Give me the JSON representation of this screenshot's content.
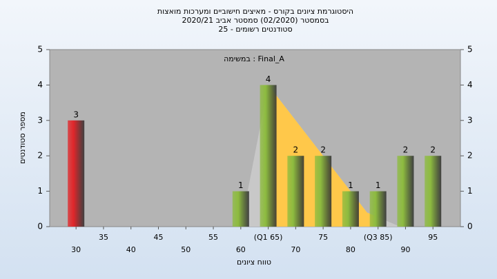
{
  "chart_data": {
    "type": "bar",
    "title": [
      "היסטוגרמת ציונים בקורס - מאיצים חישוביים ומערכות מואצות",
      "בסמסטר  (02/2020)  סמסטר אביב 2020/21",
      "סטודנטים רשומים - 25"
    ],
    "annotation": "במשימה : Final_A",
    "x_label": "טווח ציונים",
    "y_label": "מספר סטודנטים",
    "x": [
      30,
      35,
      40,
      45,
      50,
      55,
      60,
      65,
      70,
      75,
      80,
      85,
      90,
      95
    ],
    "values": [
      3,
      0,
      0,
      0,
      0,
      0,
      1,
      4,
      2,
      2,
      1,
      1,
      2,
      2
    ],
    "colors": [
      "#e0262a",
      "#8dbb3f",
      "#8dbb3f",
      "#8dbb3f",
      "#8dbb3f",
      "#8dbb3f",
      "#8dbb3f",
      "#8dbb3f",
      "#8dbb3f",
      "#8dbb3f",
      "#8dbb3f",
      "#8dbb3f",
      "#8dbb3f",
      "#8dbb3f"
    ],
    "xlim": [
      25.2,
      100
    ],
    "xticks": [
      30,
      35,
      40,
      45,
      50,
      55,
      60,
      {
        "value": 65,
        "label": "(Q1 65)"
      },
      70,
      75,
      80,
      {
        "value": 85,
        "label": "(Q3 85)"
      },
      90,
      95
    ],
    "ylim": [
      0,
      5
    ],
    "yticks": [
      0,
      1,
      2,
      3,
      4,
      5
    ],
    "area": {
      "x": [
        60,
        65,
        83,
        89
      ],
      "values": [
        0,
        4,
        0.4,
        0
      ],
      "color": "#c8c8c8",
      "band": [
        65,
        85
      ],
      "band_color": "#ffc84a"
    }
  }
}
